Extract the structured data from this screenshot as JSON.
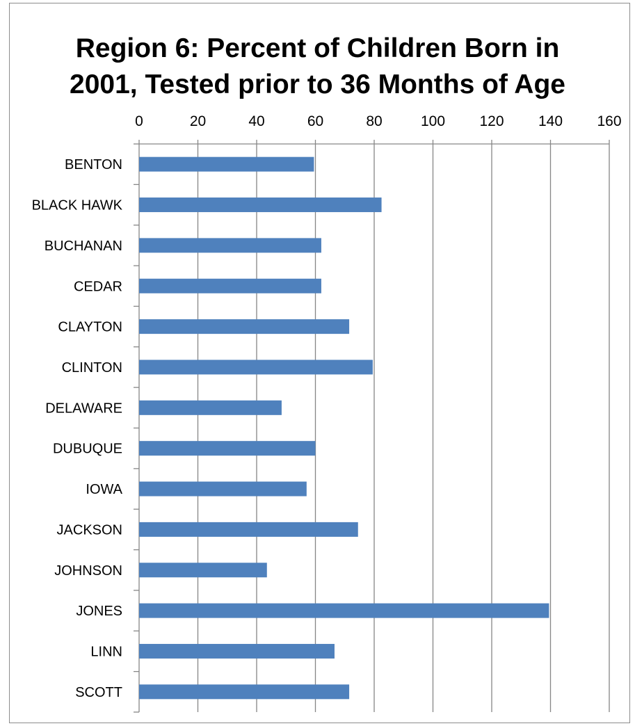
{
  "chart_data": {
    "type": "bar",
    "orientation": "horizontal",
    "title_lines": [
      "Region 6: Percent of Children Born in",
      "2001, Tested prior to 36 Months of Age"
    ],
    "xlabel": "",
    "ylabel": "",
    "xlim": [
      0,
      160
    ],
    "x_ticks": [
      0,
      20,
      40,
      60,
      80,
      100,
      120,
      140,
      160
    ],
    "x_axis_position": "top",
    "grid": true,
    "legend": "none",
    "categories": [
      "BENTON",
      "BLACK HAWK",
      "BUCHANAN",
      "CEDAR",
      "CLAYTON",
      "CLINTON",
      "DELAWARE",
      "DUBUQUE",
      "IOWA",
      "JACKSON",
      "JOHNSON",
      "JONES",
      "LINN",
      "SCOTT"
    ],
    "values": [
      59.5,
      82.5,
      62,
      62,
      71.5,
      79.5,
      48.5,
      60,
      57,
      74.5,
      43.5,
      139.5,
      66.5,
      71.5
    ],
    "bar_color": "#4f81bd"
  }
}
